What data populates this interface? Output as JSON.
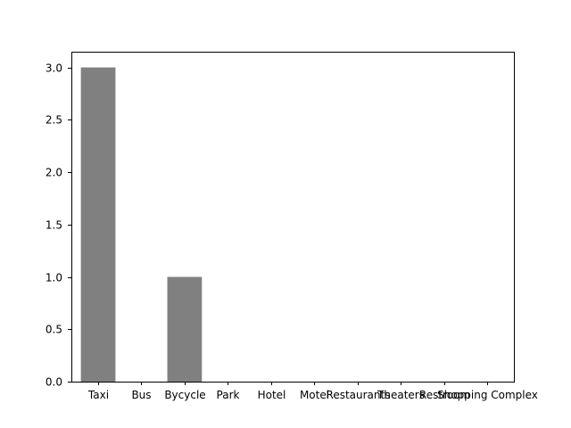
{
  "chart_data": {
    "type": "bar",
    "categories": [
      "Taxi",
      "Bus",
      "Bycycle",
      "Park",
      "Hotel",
      "Motel",
      "Restaurants",
      "Theaters",
      "Restroom",
      "Shopping Complex"
    ],
    "values": [
      3,
      0,
      1,
      0,
      0,
      0,
      0,
      0,
      0,
      0
    ],
    "ylim": [
      0,
      3.15
    ],
    "yticks": [
      0.0,
      0.5,
      1.0,
      1.5,
      2.0,
      2.5,
      3.0
    ],
    "ytick_labels": [
      "0.0",
      "0.5",
      "1.0",
      "1.5",
      "2.0",
      "2.5",
      "3.0"
    ],
    "bar_color": "#808080",
    "grid": false,
    "title": "",
    "xlabel": "",
    "ylabel": ""
  }
}
